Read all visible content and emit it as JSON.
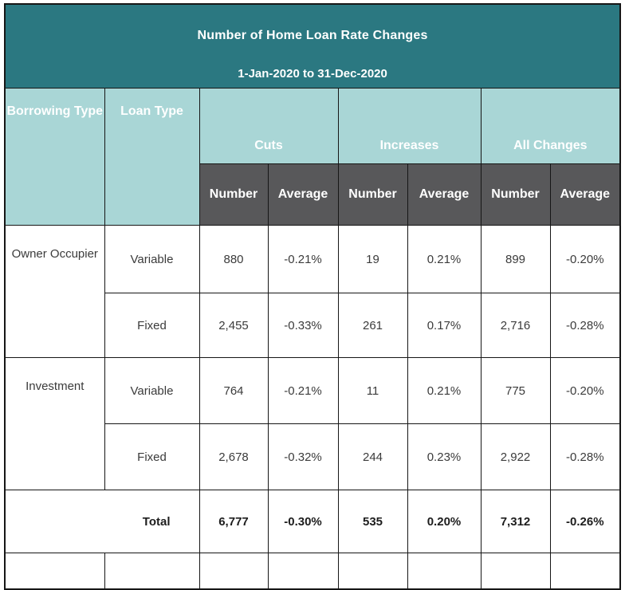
{
  "title": "Number of Home Loan Rate Changes",
  "subtitle": "1-Jan-2020 to 31-Dec-2020",
  "columns": {
    "borrowing_type": "Borrowing Type",
    "loan_type": "Loan Type",
    "groups": [
      {
        "label": "Cuts"
      },
      {
        "label": "Increases"
      },
      {
        "label": "All Changes"
      }
    ],
    "sub_headers": [
      "Number",
      "Average",
      "Number",
      "Average",
      "Number",
      "Average"
    ]
  },
  "rows": [
    {
      "group": "Owner Occupier",
      "loan": "Variable",
      "values": [
        "880",
        "-0.21%",
        "19",
        "0.21%",
        "899",
        "-0.20%"
      ]
    },
    {
      "loan": "Fixed",
      "values": [
        "2,455",
        "-0.33%",
        "261",
        "0.17%",
        "2,716",
        "-0.28%"
      ]
    },
    {
      "group": "Investment",
      "loan": "Variable",
      "values": [
        "764",
        "-0.21%",
        "11",
        "0.21%",
        "775",
        "-0.20%"
      ]
    },
    {
      "loan": "Fixed",
      "values": [
        "2,678",
        "-0.32%",
        "244",
        "0.23%",
        "2,922",
        "-0.28%"
      ]
    }
  ],
  "total": {
    "label": "Total",
    "values": [
      "6,777",
      "-0.30%",
      "535",
      "0.20%",
      "7,312",
      "-0.26%"
    ]
  },
  "colors": {
    "header_teal": "#2B7881",
    "light_teal": "#A9D6D6",
    "dark_gray": "#58585A",
    "border": "#161616",
    "header_text": "#FFFFFF",
    "data_text": "#3B3B3B"
  },
  "chart_data": {
    "type": "table",
    "title": "Number of Home Loan Rate Changes",
    "subtitle": "1-Jan-2020 to 31-Dec-2020",
    "column_groups": [
      "Cuts",
      "Increases",
      "All Changes"
    ],
    "columns": [
      "Borrowing Type",
      "Loan Type",
      "Cuts Number",
      "Cuts Average",
      "Increases Number",
      "Increases Average",
      "All Changes Number",
      "All Changes Average"
    ],
    "rows": [
      [
        "Owner Occupier",
        "Variable",
        880,
        "-0.21%",
        19,
        "0.21%",
        899,
        "-0.20%"
      ],
      [
        "Owner Occupier",
        "Fixed",
        2455,
        "-0.33%",
        261,
        "0.17%",
        2716,
        "-0.28%"
      ],
      [
        "Investment",
        "Variable",
        764,
        "-0.21%",
        11,
        "0.21%",
        775,
        "-0.20%"
      ],
      [
        "Investment",
        "Fixed",
        2678,
        "-0.32%",
        244,
        "0.23%",
        2922,
        "-0.28%"
      ]
    ],
    "total_row": [
      "",
      "Total",
      6777,
      "-0.30%",
      535,
      "0.20%",
      7312,
      "-0.26%"
    ]
  }
}
